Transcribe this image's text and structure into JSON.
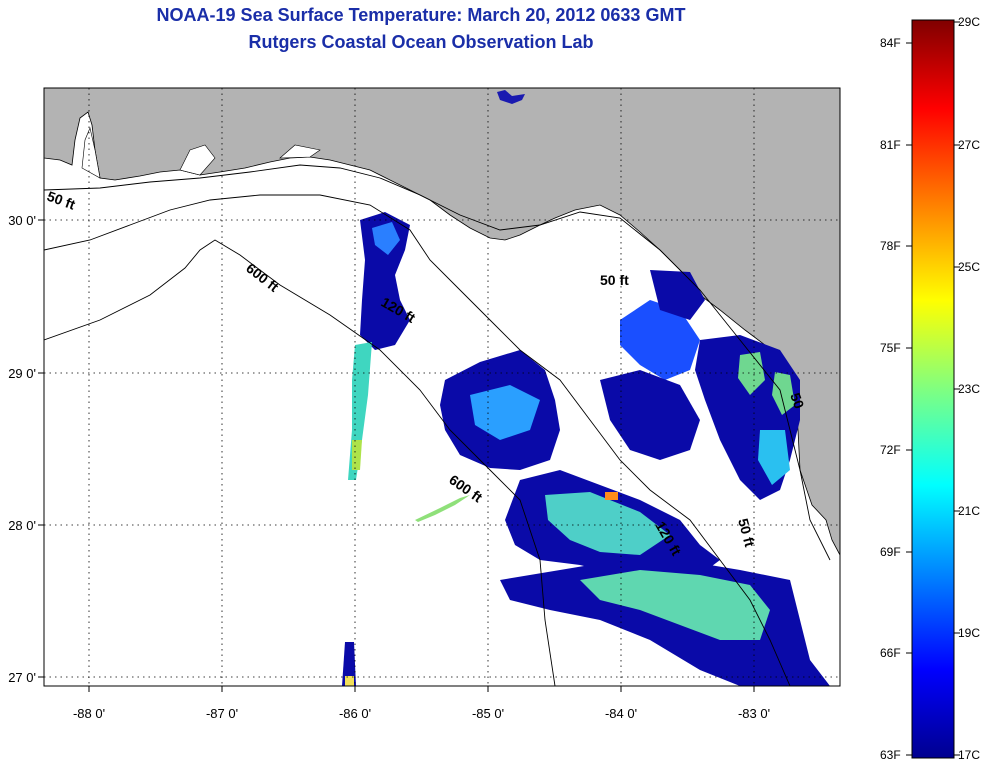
{
  "header": {
    "title": "NOAA-19 Sea Surface Temperature:  March 20, 2012 0633 GMT",
    "subtitle": "Rutgers Coastal Ocean Observation Lab"
  },
  "axes": {
    "lat_ticks": [
      "30 0'",
      "29 0'",
      "28 0'",
      "27 0'"
    ],
    "lon_ticks": [
      "-88 0'",
      "-87 0'",
      "-86 0'",
      "-85 0'",
      "-84 0'",
      "-83 0'"
    ]
  },
  "contours": {
    "c50_left": "50 ft",
    "c600_a": "600 ft",
    "c120_a": "120 ft",
    "c600_b": "600 ft",
    "c50_b": "50 ft",
    "c120_b": "120 ft",
    "c50_c": "50 ft",
    "c50_d": "50"
  },
  "colorbar": {
    "fahrenheit": [
      "84F",
      "81F",
      "78F",
      "75F",
      "72F",
      "69F",
      "66F",
      "63F"
    ],
    "celsius": [
      "29C",
      "27C",
      "25C",
      "23C",
      "21C",
      "19C",
      "17C"
    ],
    "colors": [
      "#00008f",
      "#0000ff",
      "#0080ff",
      "#00ffff",
      "#80ff80",
      "#ffff00",
      "#ff8000",
      "#ff0000",
      "#800000"
    ]
  }
}
